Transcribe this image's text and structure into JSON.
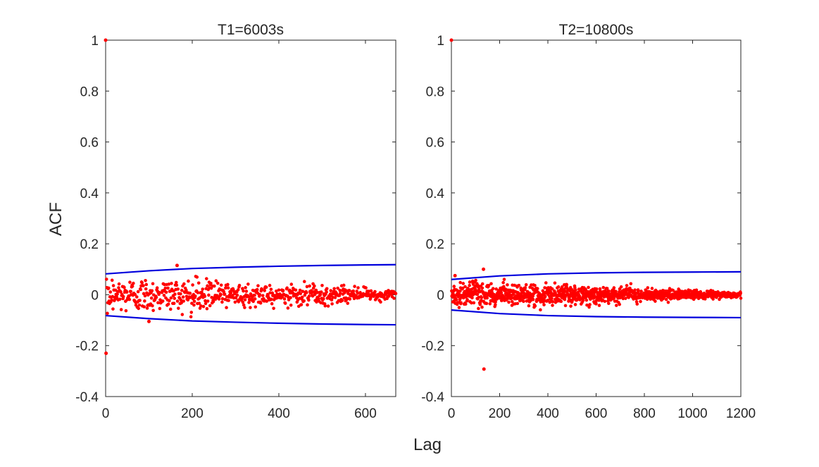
{
  "figure": {
    "xlabel": "Lag",
    "ylabel": "ACF",
    "colors": {
      "points": "#ff0000",
      "bounds": "#0000dd",
      "axes": "#262626",
      "background": "#ffffff"
    }
  },
  "chart_data": [
    {
      "type": "scatter",
      "title": "T1=6003s",
      "xlabel": "Lag",
      "ylabel": "ACF",
      "xlim": [
        0,
        670
      ],
      "ylim": [
        -0.4,
        1
      ],
      "xticks": [
        0,
        200,
        400,
        600
      ],
      "yticks": [
        -0.4,
        -0.2,
        0,
        0.2,
        0.4,
        0.6,
        0.8,
        1
      ],
      "ytick_labels": [
        "-0.4",
        "-0.2",
        "0",
        "0.2",
        "0.4",
        "0.6",
        "0.8",
        "1"
      ],
      "n_lags": 670,
      "notable_points": [
        {
          "lag": 0,
          "acf": 1.0
        },
        {
          "lag": 1,
          "acf": -0.23
        },
        {
          "lag": 165,
          "acf": 0.115
        },
        {
          "lag": 100,
          "acf": -0.105
        }
      ],
      "noise_envelope": {
        "start_sd": 0.035,
        "end_sd": 0.008
      },
      "confidence_bounds": {
        "lag": [
          0,
          100,
          200,
          300,
          400,
          500,
          600,
          670
        ],
        "upper": [
          0.082,
          0.094,
          0.103,
          0.108,
          0.112,
          0.115,
          0.117,
          0.118
        ],
        "lower": [
          -0.082,
          -0.094,
          -0.103,
          -0.108,
          -0.112,
          -0.115,
          -0.117,
          -0.118
        ]
      }
    },
    {
      "type": "scatter",
      "title": "T2=10800s",
      "xlabel": "Lag",
      "ylabel": "ACF",
      "xlim": [
        0,
        1200
      ],
      "ylim": [
        -0.4,
        1
      ],
      "xticks": [
        0,
        200,
        400,
        600,
        800,
        1000,
        1200
      ],
      "yticks": [
        -0.4,
        -0.2,
        0,
        0.2,
        0.4,
        0.6,
        0.8,
        1
      ],
      "ytick_labels": [
        "-0.4",
        "-0.2",
        "0",
        "0.2",
        "0.4",
        "0.6",
        "0.8",
        "1"
      ],
      "n_lags": 1200,
      "notable_points": [
        {
          "lag": 0,
          "acf": 1.0
        },
        {
          "lag": 135,
          "acf": -0.292
        },
        {
          "lag": 133,
          "acf": 0.1
        },
        {
          "lag": 15,
          "acf": 0.075
        }
      ],
      "noise_envelope": {
        "start_sd": 0.025,
        "end_sd": 0.004
      },
      "confidence_bounds": {
        "lag": [
          0,
          200,
          400,
          600,
          800,
          1000,
          1200
        ],
        "upper": [
          0.06,
          0.074,
          0.082,
          0.086,
          0.088,
          0.089,
          0.09
        ],
        "lower": [
          -0.06,
          -0.074,
          -0.082,
          -0.086,
          -0.088,
          -0.089,
          -0.09
        ]
      }
    }
  ]
}
